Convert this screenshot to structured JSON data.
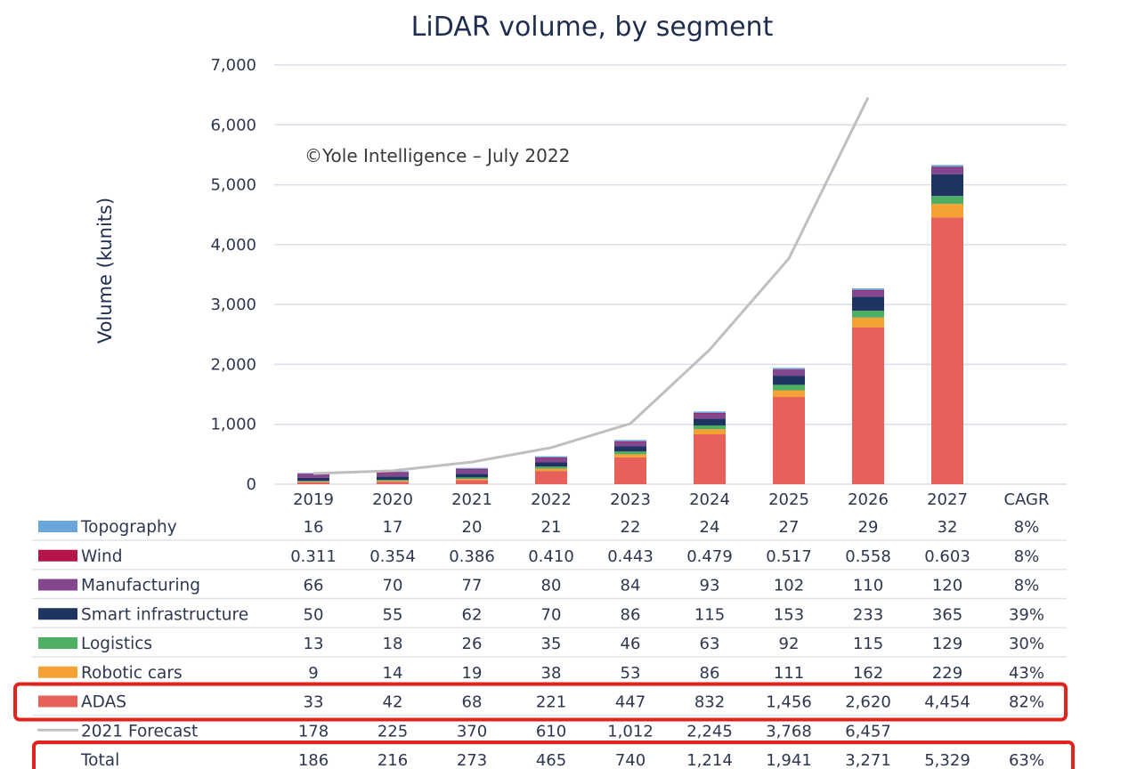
{
  "chart_data": {
    "type": "bar",
    "stacked": true,
    "title": "LiDAR volume, by segment",
    "xlabel": "",
    "ylabel": "Volume (kunits)",
    "ylim": [
      0,
      7000
    ],
    "yticks": [
      0,
      1000,
      2000,
      3000,
      4000,
      5000,
      6000,
      7000
    ],
    "ytick_labels": [
      "0",
      "1,000",
      "2,000",
      "3,000",
      "4,000",
      "5,000",
      "6,000",
      "7,000"
    ],
    "grid": true,
    "annotation": "©Yole Intelligence – July 2022",
    "categories": [
      "2019",
      "2020",
      "2021",
      "2022",
      "2023",
      "2024",
      "2025",
      "2026",
      "2027"
    ],
    "extra_column_header": "CAGR",
    "series": [
      {
        "name": "ADAS",
        "color": "#e8605a",
        "values": [
          33,
          42,
          68,
          221,
          447,
          832,
          1456,
          2620,
          4454
        ],
        "labels": [
          "33",
          "42",
          "68",
          "221",
          "447",
          "832",
          "1,456",
          "2,620",
          "4,454"
        ],
        "cagr": "82%",
        "highlighted": true
      },
      {
        "name": "Robotic cars",
        "color": "#f4a233",
        "values": [
          9,
          14,
          19,
          38,
          53,
          86,
          111,
          162,
          229
        ],
        "labels": [
          "9",
          "14",
          "19",
          "38",
          "53",
          "86",
          "111",
          "162",
          "229"
        ],
        "cagr": "43%"
      },
      {
        "name": "Logistics",
        "color": "#4caf64",
        "values": [
          13,
          18,
          26,
          35,
          46,
          63,
          92,
          115,
          129
        ],
        "labels": [
          "13",
          "18",
          "26",
          "35",
          "46",
          "63",
          "92",
          "115",
          "129"
        ],
        "cagr": "30%"
      },
      {
        "name": "Smart infrastructure",
        "color": "#1f3461",
        "values": [
          50,
          55,
          62,
          70,
          86,
          115,
          153,
          233,
          365
        ],
        "labels": [
          "50",
          "55",
          "62",
          "70",
          "86",
          "115",
          "153",
          "233",
          "365"
        ],
        "cagr": "39%"
      },
      {
        "name": "Manufacturing",
        "color": "#84468f",
        "values": [
          66,
          70,
          77,
          80,
          84,
          93,
          102,
          110,
          120
        ],
        "labels": [
          "66",
          "70",
          "77",
          "80",
          "84",
          "93",
          "102",
          "110",
          "120"
        ],
        "cagr": "8%"
      },
      {
        "name": "Wind",
        "color": "#b5144b",
        "values": [
          0.311,
          0.354,
          0.386,
          0.41,
          0.443,
          0.479,
          0.517,
          0.558,
          0.603
        ],
        "labels": [
          "0.311",
          "0.354",
          "0.386",
          "0.410",
          "0.443",
          "0.479",
          "0.517",
          "0.558",
          "0.603"
        ],
        "cagr": "8%"
      },
      {
        "name": "Topography",
        "color": "#6aa6dc",
        "values": [
          16,
          17,
          20,
          21,
          22,
          24,
          27,
          29,
          32
        ],
        "labels": [
          "16",
          "17",
          "20",
          "21",
          "22",
          "24",
          "27",
          "29",
          "32"
        ],
        "cagr": "8%"
      }
    ],
    "line": {
      "name": "2021 Forecast",
      "color": "#bfbfbf",
      "values": [
        178,
        225,
        370,
        610,
        1012,
        2245,
        3768,
        6457,
        null
      ],
      "labels": [
        "178",
        "225",
        "370",
        "610",
        "1,012",
        "2,245",
        "3,768",
        "6,457",
        ""
      ]
    },
    "total": {
      "name": "Total",
      "values": [
        186,
        216,
        273,
        465,
        740,
        1214,
        1941,
        3271,
        5329
      ],
      "labels": [
        "186",
        "216",
        "273",
        "465",
        "740",
        "1,214",
        "1,941",
        "3,271",
        "5,329"
      ],
      "cagr": "63%",
      "highlighted": true
    },
    "table_row_order": [
      "Topography",
      "Wind",
      "Manufacturing",
      "Smart infrastructure",
      "Logistics",
      "Robotic cars",
      "ADAS",
      "2021 Forecast",
      "Total"
    ],
    "highlight_color": "#e0231c",
    "gridline_color": "#d9dfe8",
    "legend": "table-below"
  }
}
